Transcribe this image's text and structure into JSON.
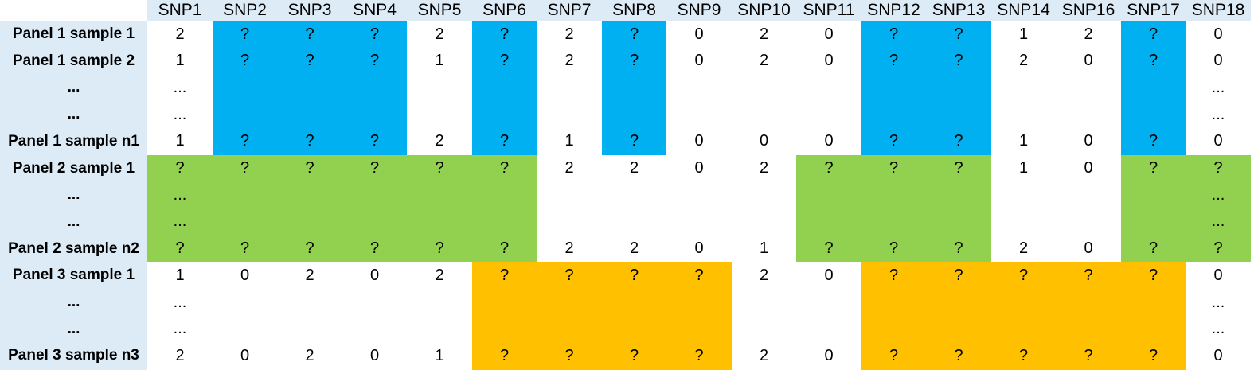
{
  "columns": [
    "SNP1",
    "SNP2",
    "SNP3",
    "SNP4",
    "SNP5",
    "SNP6",
    "SNP7",
    "SNP8",
    "SNP9",
    "SNP10",
    "SNP11",
    "SNP12",
    "SNP13",
    "SNP14",
    "SNP16",
    "SNP17",
    "SNP18"
  ],
  "colors": {
    "blue": "#00b0f0",
    "green": "#92d050",
    "orange": "#ffc000",
    "header": "#ddebf7",
    "white": "#ffffff"
  },
  "rows": [
    {
      "label": "Panel 1 sample 1",
      "values": [
        "2",
        "?",
        "?",
        "?",
        "2",
        "?",
        "2",
        "?",
        "0",
        "2",
        "0",
        "?",
        "?",
        "1",
        "2",
        "?",
        "0"
      ],
      "fill": [
        "",
        "b",
        "b",
        "b",
        "",
        "b",
        "",
        "b",
        "",
        "",
        "",
        "b",
        "b",
        "",
        "",
        "b",
        ""
      ]
    },
    {
      "label": "Panel 1 sample 2",
      "values": [
        "1",
        "?",
        "?",
        "?",
        "1",
        "?",
        "2",
        "?",
        "0",
        "2",
        "0",
        "?",
        "?",
        "2",
        "0",
        "?",
        "0"
      ],
      "fill": [
        "",
        "b",
        "b",
        "b",
        "",
        "b",
        "",
        "b",
        "",
        "",
        "",
        "b",
        "b",
        "",
        "",
        "b",
        ""
      ]
    },
    {
      "label": "...",
      "values": [
        "...",
        "",
        "",
        "",
        "",
        "",
        "",
        "",
        "",
        "",
        "",
        "",
        "",
        "",
        "",
        "",
        "..."
      ],
      "fill": [
        "",
        "b",
        "b",
        "b",
        "",
        "b",
        "",
        "b",
        "",
        "",
        "",
        "b",
        "b",
        "",
        "",
        "b",
        ""
      ]
    },
    {
      "label": "...",
      "values": [
        "...",
        "",
        "",
        "",
        "",
        "",
        "",
        "",
        "",
        "",
        "",
        "",
        "",
        "",
        "",
        "",
        "..."
      ],
      "fill": [
        "",
        "b",
        "b",
        "b",
        "",
        "b",
        "",
        "b",
        "",
        "",
        "",
        "b",
        "b",
        "",
        "",
        "b",
        ""
      ]
    },
    {
      "label": "Panel 1 sample n1",
      "values": [
        "1",
        "?",
        "?",
        "?",
        "2",
        "?",
        "1",
        "?",
        "0",
        "0",
        "0",
        "?",
        "?",
        "1",
        "0",
        "?",
        "0"
      ],
      "fill": [
        "",
        "b",
        "b",
        "b",
        "",
        "b",
        "",
        "b",
        "",
        "",
        "",
        "b",
        "b",
        "",
        "",
        "b",
        ""
      ]
    },
    {
      "label": "Panel 2 sample 1",
      "values": [
        "?",
        "?",
        "?",
        "?",
        "?",
        "?",
        "2",
        "2",
        "0",
        "2",
        "?",
        "?",
        "?",
        "1",
        "0",
        "?",
        "?"
      ],
      "fill": [
        "g",
        "g",
        "g",
        "g",
        "g",
        "g",
        "",
        "",
        "",
        "",
        "g",
        "g",
        "g",
        "",
        "",
        "g",
        "g"
      ]
    },
    {
      "label": "...",
      "values": [
        "...",
        "",
        "",
        "",
        "",
        "",
        "",
        "",
        "",
        "",
        "",
        "",
        "",
        "",
        "",
        "",
        "..."
      ],
      "fill": [
        "g",
        "g",
        "g",
        "g",
        "g",
        "g",
        "",
        "",
        "",
        "",
        "g",
        "g",
        "g",
        "",
        "",
        "g",
        "g"
      ]
    },
    {
      "label": "...",
      "values": [
        "...",
        "",
        "",
        "",
        "",
        "",
        "",
        "",
        "",
        "",
        "",
        "",
        "",
        "",
        "",
        "",
        "..."
      ],
      "fill": [
        "g",
        "g",
        "g",
        "g",
        "g",
        "g",
        "",
        "",
        "",
        "",
        "g",
        "g",
        "g",
        "",
        "",
        "g",
        "g"
      ]
    },
    {
      "label": "Panel 2 sample n2",
      "values": [
        "?",
        "?",
        "?",
        "?",
        "?",
        "?",
        "2",
        "2",
        "0",
        "1",
        "?",
        "?",
        "?",
        "2",
        "0",
        "?",
        "?"
      ],
      "fill": [
        "g",
        "g",
        "g",
        "g",
        "g",
        "g",
        "",
        "",
        "",
        "",
        "g",
        "g",
        "g",
        "",
        "",
        "g",
        "g"
      ]
    },
    {
      "label": "Panel 3 sample 1",
      "values": [
        "1",
        "0",
        "2",
        "0",
        "2",
        "?",
        "?",
        "?",
        "?",
        "2",
        "0",
        "?",
        "?",
        "?",
        "?",
        "?",
        "0"
      ],
      "fill": [
        "",
        "",
        "",
        "",
        "",
        "o",
        "o",
        "o",
        "o",
        "",
        "",
        "o",
        "o",
        "o",
        "o",
        "o",
        ""
      ]
    },
    {
      "label": "...",
      "values": [
        "...",
        "",
        "",
        "",
        "",
        "",
        "",
        "",
        "",
        "",
        "",
        "",
        "",
        "",
        "",
        "",
        "..."
      ],
      "fill": [
        "",
        "",
        "",
        "",
        "",
        "o",
        "o",
        "o",
        "o",
        "",
        "",
        "o",
        "o",
        "o",
        "o",
        "o",
        ""
      ]
    },
    {
      "label": "...",
      "values": [
        "...",
        "",
        "",
        "",
        "",
        "",
        "",
        "",
        "",
        "",
        "",
        "",
        "",
        "",
        "",
        "",
        "..."
      ],
      "fill": [
        "",
        "",
        "",
        "",
        "",
        "o",
        "o",
        "o",
        "o",
        "",
        "",
        "o",
        "o",
        "o",
        "o",
        "o",
        ""
      ]
    },
    {
      "label": "Panel 3 sample n3",
      "values": [
        "2",
        "0",
        "2",
        "0",
        "1",
        "?",
        "?",
        "?",
        "?",
        "2",
        "0",
        "?",
        "?",
        "?",
        "?",
        "?",
        "0"
      ],
      "fill": [
        "",
        "",
        "",
        "",
        "",
        "o",
        "o",
        "o",
        "o",
        "",
        "",
        "o",
        "o",
        "o",
        "o",
        "o",
        ""
      ]
    }
  ]
}
